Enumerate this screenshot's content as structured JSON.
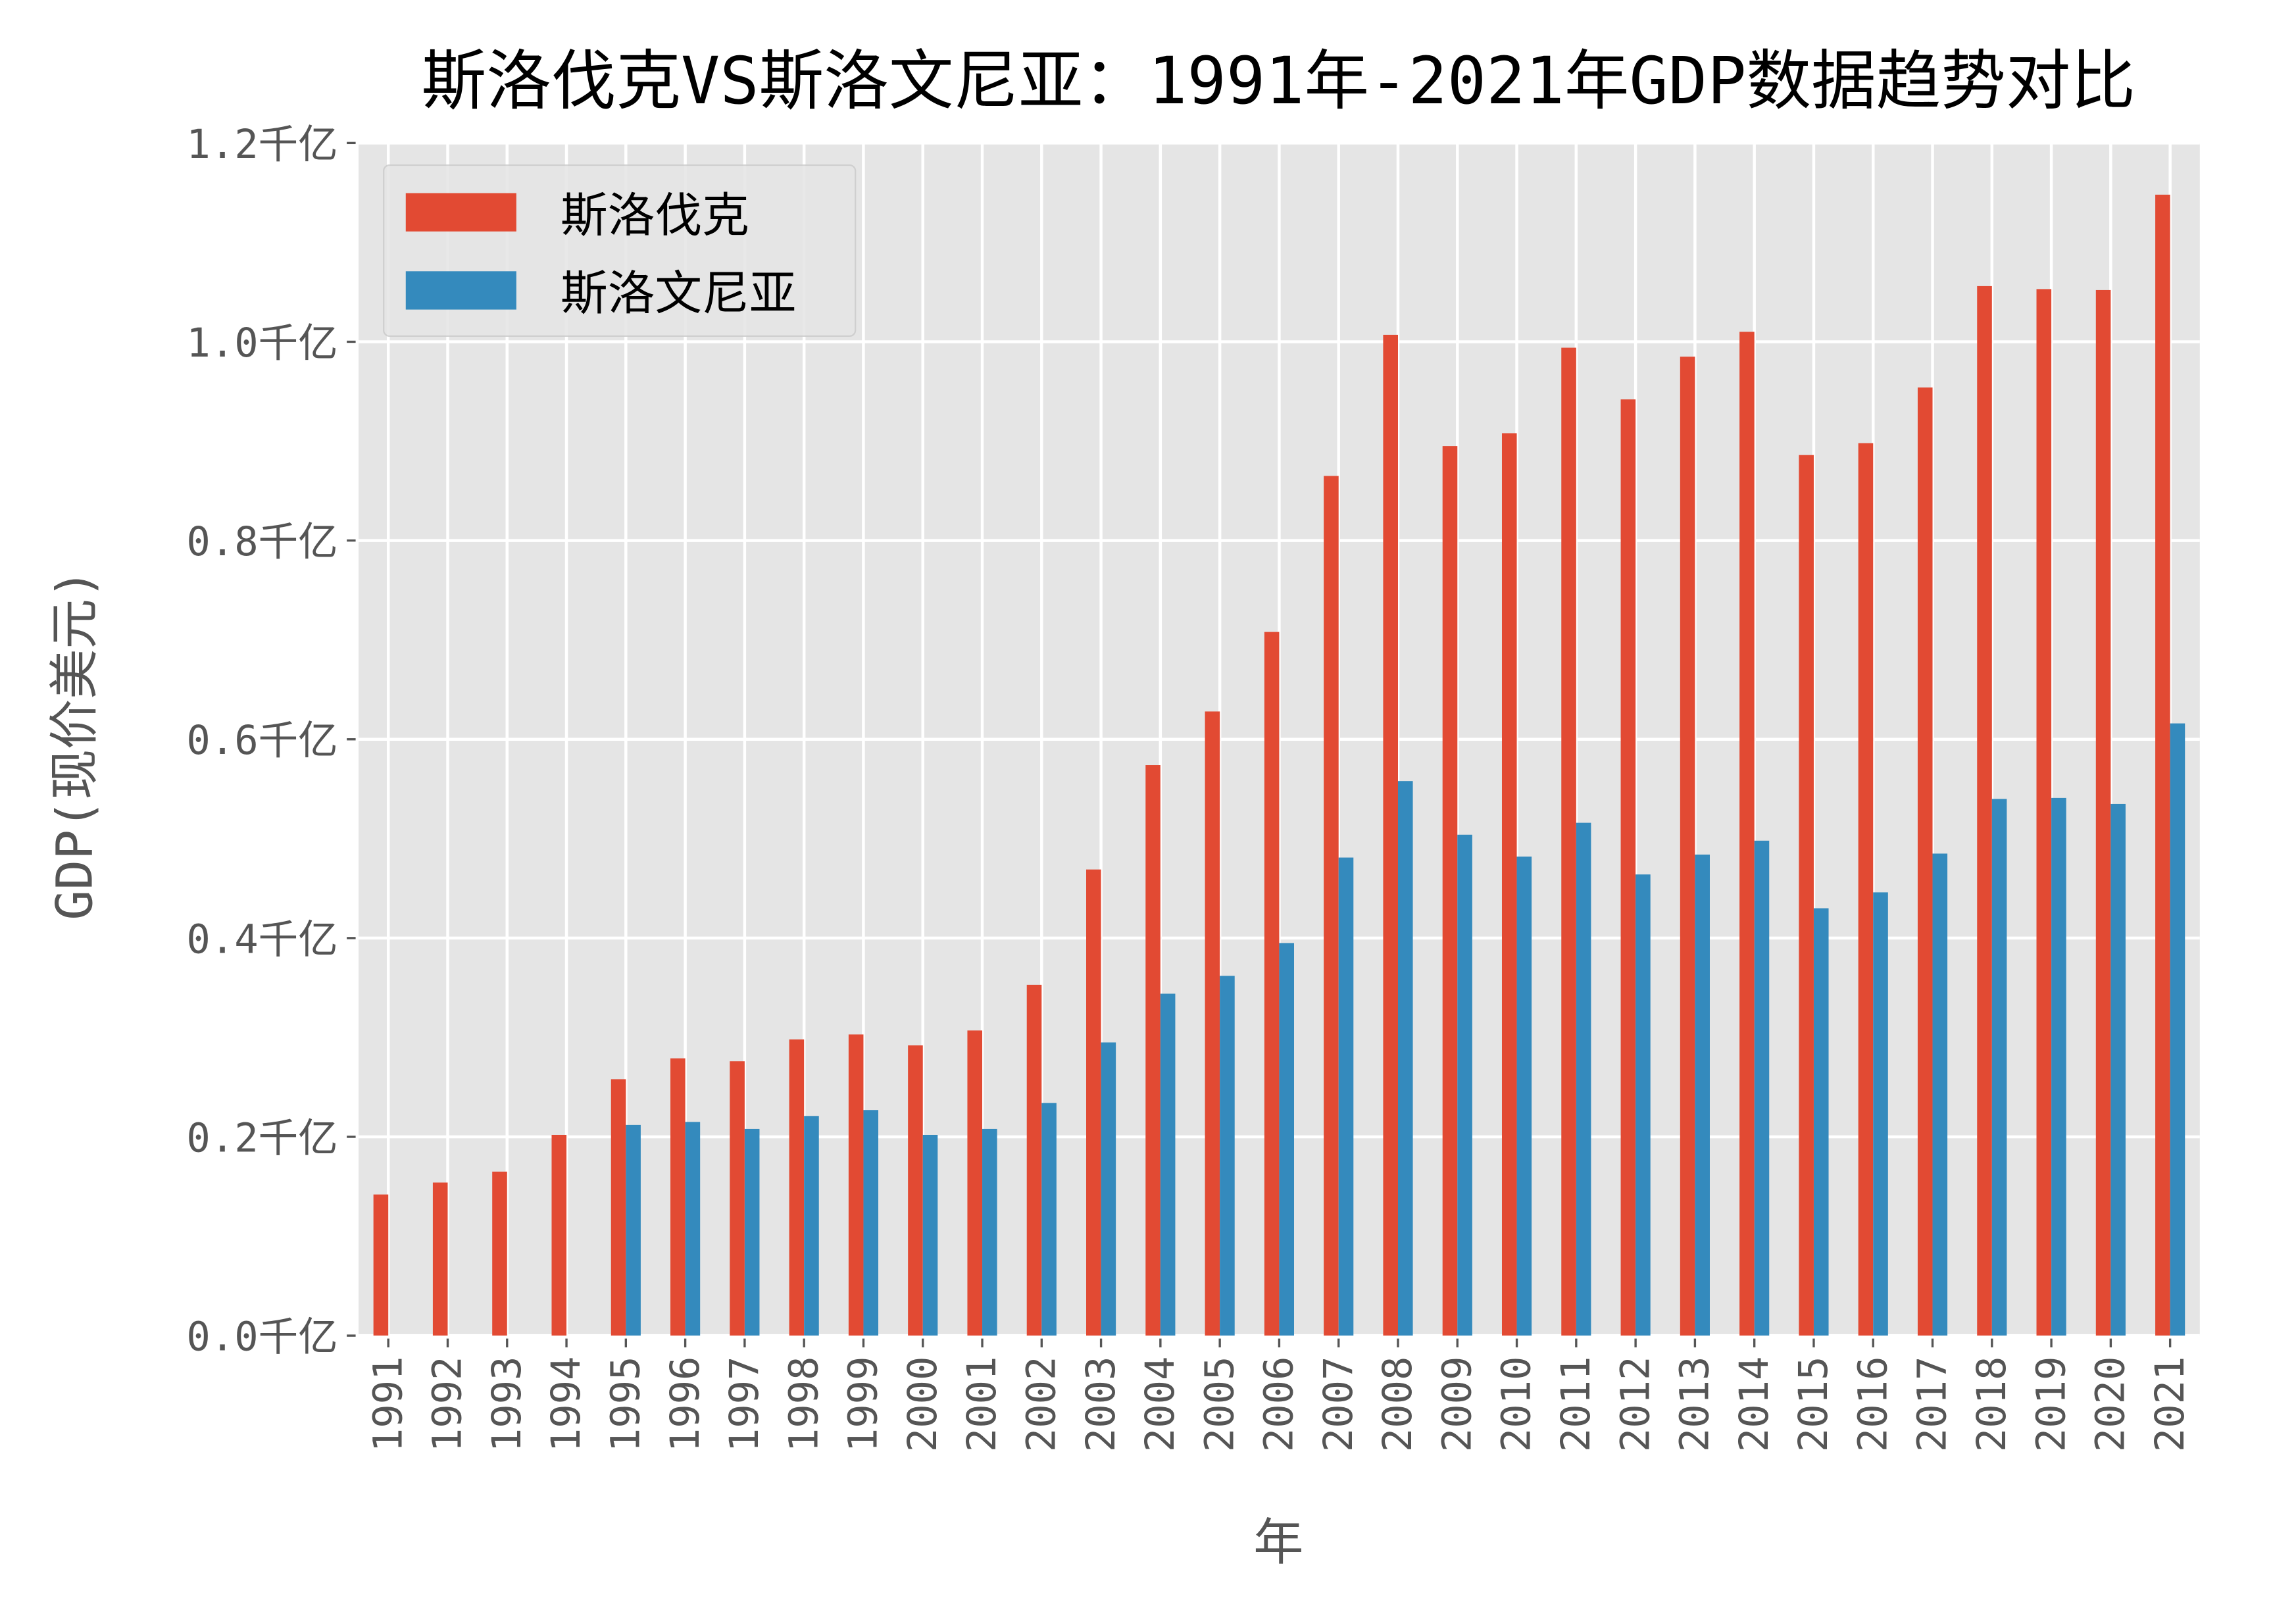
{
  "chart_data": {
    "type": "bar",
    "title": "斯洛伐克VS斯洛文尼亚：1991年-2021年GDP数据趋势对比",
    "xlabel": "年",
    "ylabel": "GDP(现价美元)",
    "ylim": [
      0,
      1.2
    ],
    "y_unit": "千亿",
    "yticks": [
      "0.0千亿",
      "0.2千亿",
      "0.4千亿",
      "0.6千亿",
      "0.8千亿",
      "1.0千亿",
      "1.2千亿"
    ],
    "grid": true,
    "legend_position": "top-left",
    "background": "#E5E5E5",
    "categories": [
      "1991",
      "1992",
      "1993",
      "1994",
      "1995",
      "1996",
      "1997",
      "1998",
      "1999",
      "2000",
      "2001",
      "2002",
      "2003",
      "2004",
      "2005",
      "2006",
      "2007",
      "2008",
      "2009",
      "2010",
      "2011",
      "2012",
      "2013",
      "2014",
      "2015",
      "2016",
      "2017",
      "2018",
      "2019",
      "2020",
      "2021"
    ],
    "series": [
      {
        "name": "斯洛伐克",
        "color": "#E24A33",
        "values": [
          0.142,
          0.154,
          0.165,
          0.202,
          0.258,
          0.279,
          0.276,
          0.298,
          0.303,
          0.292,
          0.307,
          0.353,
          0.469,
          0.574,
          0.628,
          0.708,
          0.865,
          1.007,
          0.895,
          0.908,
          0.994,
          0.942,
          0.985,
          1.01,
          0.886,
          0.898,
          0.954,
          1.056,
          1.053,
          1.052,
          1.148
        ]
      },
      {
        "name": "斯洛文尼亚",
        "color": "#348ABD",
        "values": [
          null,
          null,
          null,
          null,
          0.212,
          0.215,
          0.208,
          0.221,
          0.227,
          0.202,
          0.208,
          0.234,
          0.295,
          0.344,
          0.362,
          0.395,
          0.481,
          0.558,
          0.504,
          0.482,
          0.516,
          0.464,
          0.484,
          0.498,
          0.43,
          0.446,
          0.485,
          0.54,
          0.541,
          0.535,
          0.616
        ]
      }
    ]
  }
}
